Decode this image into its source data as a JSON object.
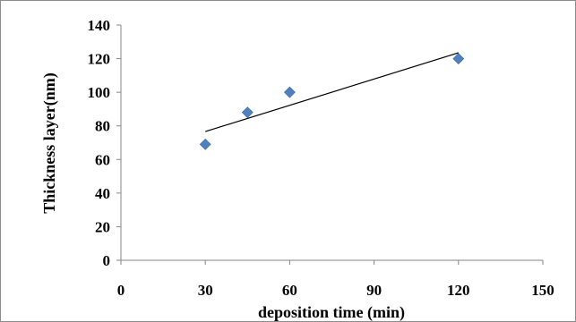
{
  "chart_data": {
    "type": "scatter",
    "title": "",
    "xlabel": "deposition time (min)",
    "ylabel": "Thickness layer(nm)",
    "xlim": [
      0,
      150
    ],
    "ylim": [
      0,
      140
    ],
    "x_ticks": [
      0,
      30,
      60,
      90,
      120,
      150
    ],
    "y_ticks": [
      0,
      20,
      40,
      60,
      80,
      100,
      120,
      140
    ],
    "series": [
      {
        "x": [
          30,
          45,
          60,
          120
        ],
        "y": [
          69,
          88,
          100,
          120
        ],
        "marker": "diamond",
        "color": "#4f81bd"
      }
    ],
    "trendline": {
      "type": "linear",
      "x": [
        30,
        120
      ],
      "y": [
        76.6,
        123.5
      ],
      "color": "#000000"
    },
    "grid": false,
    "legend": "none"
  }
}
